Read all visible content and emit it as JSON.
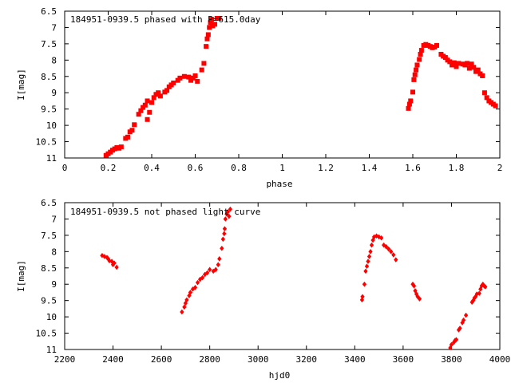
{
  "chart_data": [
    {
      "type": "scatter",
      "title": "184951-0939.5 phased with P=615.0day",
      "xlabel": "phase",
      "ylabel": "I[mag]",
      "xlim": [
        0,
        2
      ],
      "ylim": [
        11,
        6.5
      ],
      "y_inverted": true,
      "xticks": [
        0,
        0.2,
        0.4,
        0.6,
        0.8,
        1,
        1.2,
        1.4,
        1.6,
        1.8,
        2
      ],
      "xtick_labels": [
        "0",
        "0.2",
        "0.4",
        "0.6",
        "0.8",
        "1",
        "1.2",
        "1.4",
        "1.6",
        "1.8",
        "2"
      ],
      "yticks": [
        6.5,
        7,
        7.5,
        8,
        8.5,
        9,
        9.5,
        10,
        10.5,
        11
      ],
      "ytick_labels": [
        "6.5",
        "7",
        "7.5",
        "8",
        "8.5",
        "9",
        "9.5",
        "10",
        "10.5",
        "11"
      ],
      "marker": "filled-square",
      "color": "#ff0000",
      "points": [
        [
          0.19,
          10.92
        ],
        [
          0.2,
          10.87
        ],
        [
          0.21,
          10.82
        ],
        [
          0.22,
          10.76
        ],
        [
          0.23,
          10.72
        ],
        [
          0.24,
          10.68
        ],
        [
          0.25,
          10.7
        ],
        [
          0.26,
          10.66
        ],
        [
          0.28,
          10.4
        ],
        [
          0.29,
          10.36
        ],
        [
          0.3,
          10.2
        ],
        [
          0.31,
          10.15
        ],
        [
          0.32,
          9.98
        ],
        [
          0.34,
          9.66
        ],
        [
          0.35,
          9.55
        ],
        [
          0.36,
          9.45
        ],
        [
          0.37,
          9.38
        ],
        [
          0.38,
          9.25
        ],
        [
          0.38,
          9.82
        ],
        [
          0.39,
          9.6
        ],
        [
          0.4,
          9.3
        ],
        [
          0.41,
          9.15
        ],
        [
          0.42,
          9.05
        ],
        [
          0.43,
          9.0
        ],
        [
          0.44,
          9.1
        ],
        [
          0.46,
          8.98
        ],
        [
          0.47,
          8.93
        ],
        [
          0.48,
          8.82
        ],
        [
          0.49,
          8.76
        ],
        [
          0.5,
          8.7
        ],
        [
          0.52,
          8.62
        ],
        [
          0.53,
          8.55
        ],
        [
          0.55,
          8.5
        ],
        [
          0.57,
          8.52
        ],
        [
          0.58,
          8.62
        ],
        [
          0.59,
          8.55
        ],
        [
          0.6,
          8.48
        ],
        [
          0.61,
          8.65
        ],
        [
          0.63,
          8.3
        ],
        [
          0.64,
          8.1
        ],
        [
          0.65,
          7.58
        ],
        [
          0.655,
          7.35
        ],
        [
          0.66,
          7.22
        ],
        [
          0.665,
          7.0
        ],
        [
          0.67,
          6.85
        ],
        [
          0.675,
          6.75
        ],
        [
          0.68,
          6.95
        ],
        [
          0.69,
          6.9
        ],
        [
          0.7,
          6.72
        ],
        [
          0.71,
          6.72
        ],
        [
          1.58,
          9.48
        ],
        [
          1.585,
          9.35
        ],
        [
          1.59,
          9.25
        ],
        [
          1.6,
          8.98
        ],
        [
          1.605,
          8.6
        ],
        [
          1.61,
          8.45
        ],
        [
          1.615,
          8.3
        ],
        [
          1.62,
          8.15
        ],
        [
          1.63,
          7.98
        ],
        [
          1.635,
          7.82
        ],
        [
          1.64,
          7.7
        ],
        [
          1.65,
          7.55
        ],
        [
          1.66,
          7.52
        ],
        [
          1.67,
          7.55
        ],
        [
          1.68,
          7.58
        ],
        [
          1.69,
          7.62
        ],
        [
          1.7,
          7.6
        ],
        [
          1.71,
          7.55
        ],
        [
          1.73,
          7.82
        ],
        [
          1.74,
          7.88
        ],
        [
          1.75,
          7.92
        ],
        [
          1.76,
          8.0
        ],
        [
          1.77,
          8.05
        ],
        [
          1.78,
          8.15
        ],
        [
          1.79,
          8.08
        ],
        [
          1.8,
          8.2
        ],
        [
          1.81,
          8.1
        ],
        [
          1.83,
          8.12
        ],
        [
          1.84,
          8.15
        ],
        [
          1.85,
          8.1
        ],
        [
          1.86,
          8.25
        ],
        [
          1.87,
          8.12
        ],
        [
          1.88,
          8.22
        ],
        [
          1.89,
          8.35
        ],
        [
          1.9,
          8.3
        ],
        [
          1.91,
          8.42
        ],
        [
          1.92,
          8.48
        ],
        [
          1.93,
          9.0
        ],
        [
          1.94,
          9.15
        ],
        [
          1.95,
          9.25
        ],
        [
          1.96,
          9.3
        ],
        [
          1.97,
          9.35
        ],
        [
          1.98,
          9.4
        ]
      ]
    },
    {
      "type": "scatter",
      "title": "184951-0939.5 not phased light curve",
      "xlabel": "hjd0",
      "ylabel": "I[mag]",
      "xlim": [
        2200,
        4000
      ],
      "ylim": [
        11,
        6.5
      ],
      "y_inverted": true,
      "xticks": [
        2200,
        2400,
        2600,
        2800,
        3000,
        3200,
        3400,
        3600,
        3800,
        4000
      ],
      "xtick_labels": [
        "2200",
        "2400",
        "2600",
        "2800",
        "3000",
        "3200",
        "3400",
        "3600",
        "3800",
        "4000"
      ],
      "yticks": [
        6.5,
        7,
        7.5,
        8,
        8.5,
        9,
        9.5,
        10,
        10.5,
        11
      ],
      "ytick_labels": [
        "6.5",
        "7",
        "7.5",
        "8",
        "8.5",
        "9",
        "9.5",
        "10",
        "10.5",
        "11"
      ],
      "marker": "small-diamond",
      "color": "#ff0000",
      "points": [
        [
          2355,
          8.12
        ],
        [
          2365,
          8.15
        ],
        [
          2375,
          8.18
        ],
        [
          2380,
          8.22
        ],
        [
          2385,
          8.28
        ],
        [
          2395,
          8.3
        ],
        [
          2400,
          8.4
        ],
        [
          2405,
          8.35
        ],
        [
          2415,
          8.48
        ],
        [
          2685,
          9.85
        ],
        [
          2695,
          9.7
        ],
        [
          2700,
          9.58
        ],
        [
          2705,
          9.48
        ],
        [
          2715,
          9.35
        ],
        [
          2720,
          9.25
        ],
        [
          2730,
          9.15
        ],
        [
          2740,
          9.1
        ],
        [
          2750,
          8.95
        ],
        [
          2760,
          8.85
        ],
        [
          2770,
          8.8
        ],
        [
          2780,
          8.7
        ],
        [
          2790,
          8.65
        ],
        [
          2800,
          8.55
        ],
        [
          2815,
          8.6
        ],
        [
          2825,
          8.55
        ],
        [
          2835,
          8.4
        ],
        [
          2840,
          8.22
        ],
        [
          2850,
          7.9
        ],
        [
          2855,
          7.62
        ],
        [
          2860,
          7.45
        ],
        [
          2862,
          7.3
        ],
        [
          2865,
          7.0
        ],
        [
          2870,
          6.85
        ],
        [
          2875,
          6.78
        ],
        [
          2880,
          6.92
        ],
        [
          2885,
          6.7
        ],
        [
          3430,
          9.48
        ],
        [
          3432,
          9.38
        ],
        [
          3440,
          9.0
        ],
        [
          3445,
          8.6
        ],
        [
          3450,
          8.45
        ],
        [
          3455,
          8.3
        ],
        [
          3460,
          8.15
        ],
        [
          3465,
          8.0
        ],
        [
          3470,
          7.8
        ],
        [
          3475,
          7.65
        ],
        [
          3480,
          7.55
        ],
        [
          3490,
          7.52
        ],
        [
          3500,
          7.55
        ],
        [
          3510,
          7.58
        ],
        [
          3520,
          7.8
        ],
        [
          3530,
          7.85
        ],
        [
          3540,
          7.92
        ],
        [
          3550,
          8.0
        ],
        [
          3560,
          8.1
        ],
        [
          3570,
          8.25
        ],
        [
          3640,
          9.0
        ],
        [
          3645,
          9.05
        ],
        [
          3650,
          9.2
        ],
        [
          3655,
          9.3
        ],
        [
          3660,
          9.38
        ],
        [
          3668,
          9.45
        ],
        [
          3795,
          10.95
        ],
        [
          3800,
          10.85
        ],
        [
          3810,
          10.78
        ],
        [
          3815,
          10.72
        ],
        [
          3820,
          10.7
        ],
        [
          3830,
          10.4
        ],
        [
          3835,
          10.35
        ],
        [
          3845,
          10.18
        ],
        [
          3850,
          10.1
        ],
        [
          3860,
          9.95
        ],
        [
          3885,
          9.55
        ],
        [
          3890,
          9.5
        ],
        [
          3895,
          9.42
        ],
        [
          3900,
          9.38
        ],
        [
          3905,
          9.3
        ],
        [
          3915,
          9.28
        ],
        [
          3920,
          9.15
        ],
        [
          3925,
          9.05
        ],
        [
          3930,
          9.0
        ],
        [
          3935,
          9.05
        ],
        [
          3940,
          9.08
        ]
      ]
    }
  ]
}
